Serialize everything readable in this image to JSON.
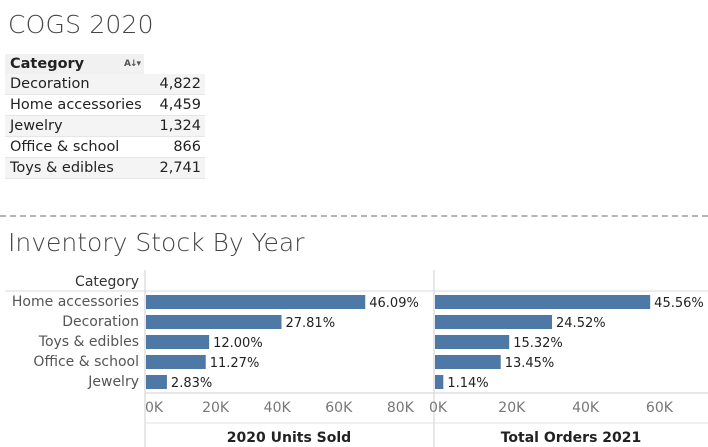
{
  "cogs": {
    "title": "COGS 2020",
    "header": "Category",
    "sort_icon": "sort-alpha-icon",
    "rows": [
      {
        "category": "Decoration",
        "value": "4,822"
      },
      {
        "category": "Home accessories",
        "value": "4,459"
      },
      {
        "category": "Jewelry",
        "value": "1,324"
      },
      {
        "category": "Office & school",
        "value": "866"
      },
      {
        "category": "Toys & edibles",
        "value": "2,741"
      }
    ]
  },
  "inventory": {
    "title": "Inventory Stock By Year"
  },
  "chart_data": {
    "type": "bar",
    "orientation": "horizontal",
    "row_header": "Category",
    "categories": [
      "Home accessories",
      "Decoration",
      "Toys & edibles",
      "Office & school",
      "Jewelry"
    ],
    "bar_color": "#4e79a7",
    "panels": [
      {
        "xlabel": "2020 Units Sold",
        "xlim": [
          0,
          88000
        ],
        "ticks": [
          0,
          20000,
          40000,
          60000,
          80000
        ],
        "tick_labels": [
          "0K",
          "20K",
          "40K",
          "60K",
          "80K"
        ],
        "values": [
          68600,
          41400,
          17900,
          16800,
          4200
        ],
        "data_labels": [
          "46.09%",
          "27.81%",
          "12.00%",
          "11.27%",
          "2.83%"
        ]
      },
      {
        "xlabel": "Total Orders 2021",
        "xlim": [
          0,
          71000
        ],
        "ticks": [
          0,
          20000,
          40000,
          60000
        ],
        "tick_labels": [
          "0K",
          "20K",
          "40K",
          "60K"
        ],
        "values": [
          57500,
          30900,
          19300,
          17000,
          1440
        ],
        "data_labels": [
          "45.56%",
          "24.52%",
          "15.32%",
          "13.45%",
          "1.14%"
        ]
      }
    ]
  }
}
